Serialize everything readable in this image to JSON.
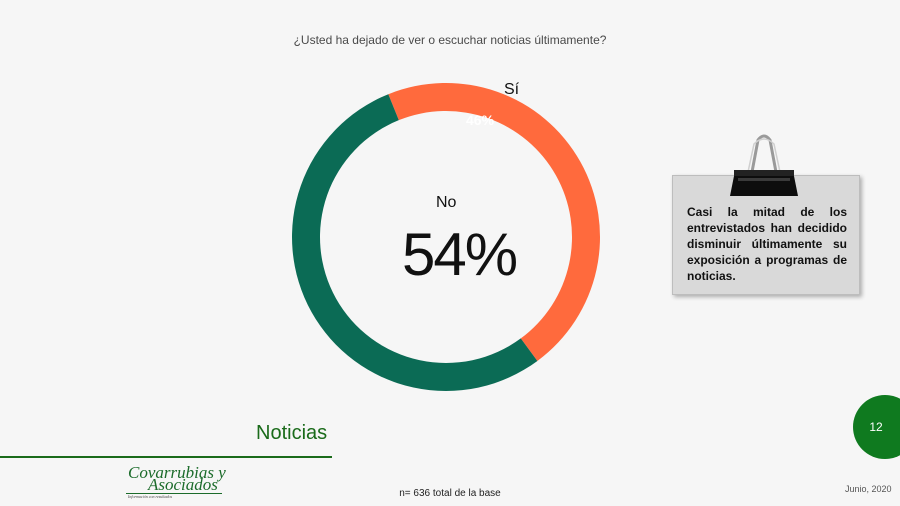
{
  "question": "¿Usted ha dejado de ver o escuchar noticias últimamente?",
  "chart_data": {
    "type": "pie",
    "variant": "donut",
    "categories": [
      "Sí",
      "No"
    ],
    "values": [
      46,
      54
    ],
    "unit": "%",
    "colors": [
      "#ff6a3d",
      "#0b6b55"
    ],
    "value_labels": [
      "46%",
      "54%"
    ]
  },
  "note": {
    "text": "Casi la mitad de los entrevistados han decidido disminuir últimamente su exposición a programas de noticias.",
    "icon": "binder-clip-icon"
  },
  "section_title": "Noticias",
  "page_number": "12",
  "logo": {
    "line1": "Covarrubias y",
    "line2": "Asociados",
    "tagline": "Información con resultados"
  },
  "base_text": "n= 636 total de la base",
  "date": "Junio, 2020",
  "colors": {
    "accent_green": "#1a6b1a",
    "page_circle": "#0f7a1f"
  }
}
